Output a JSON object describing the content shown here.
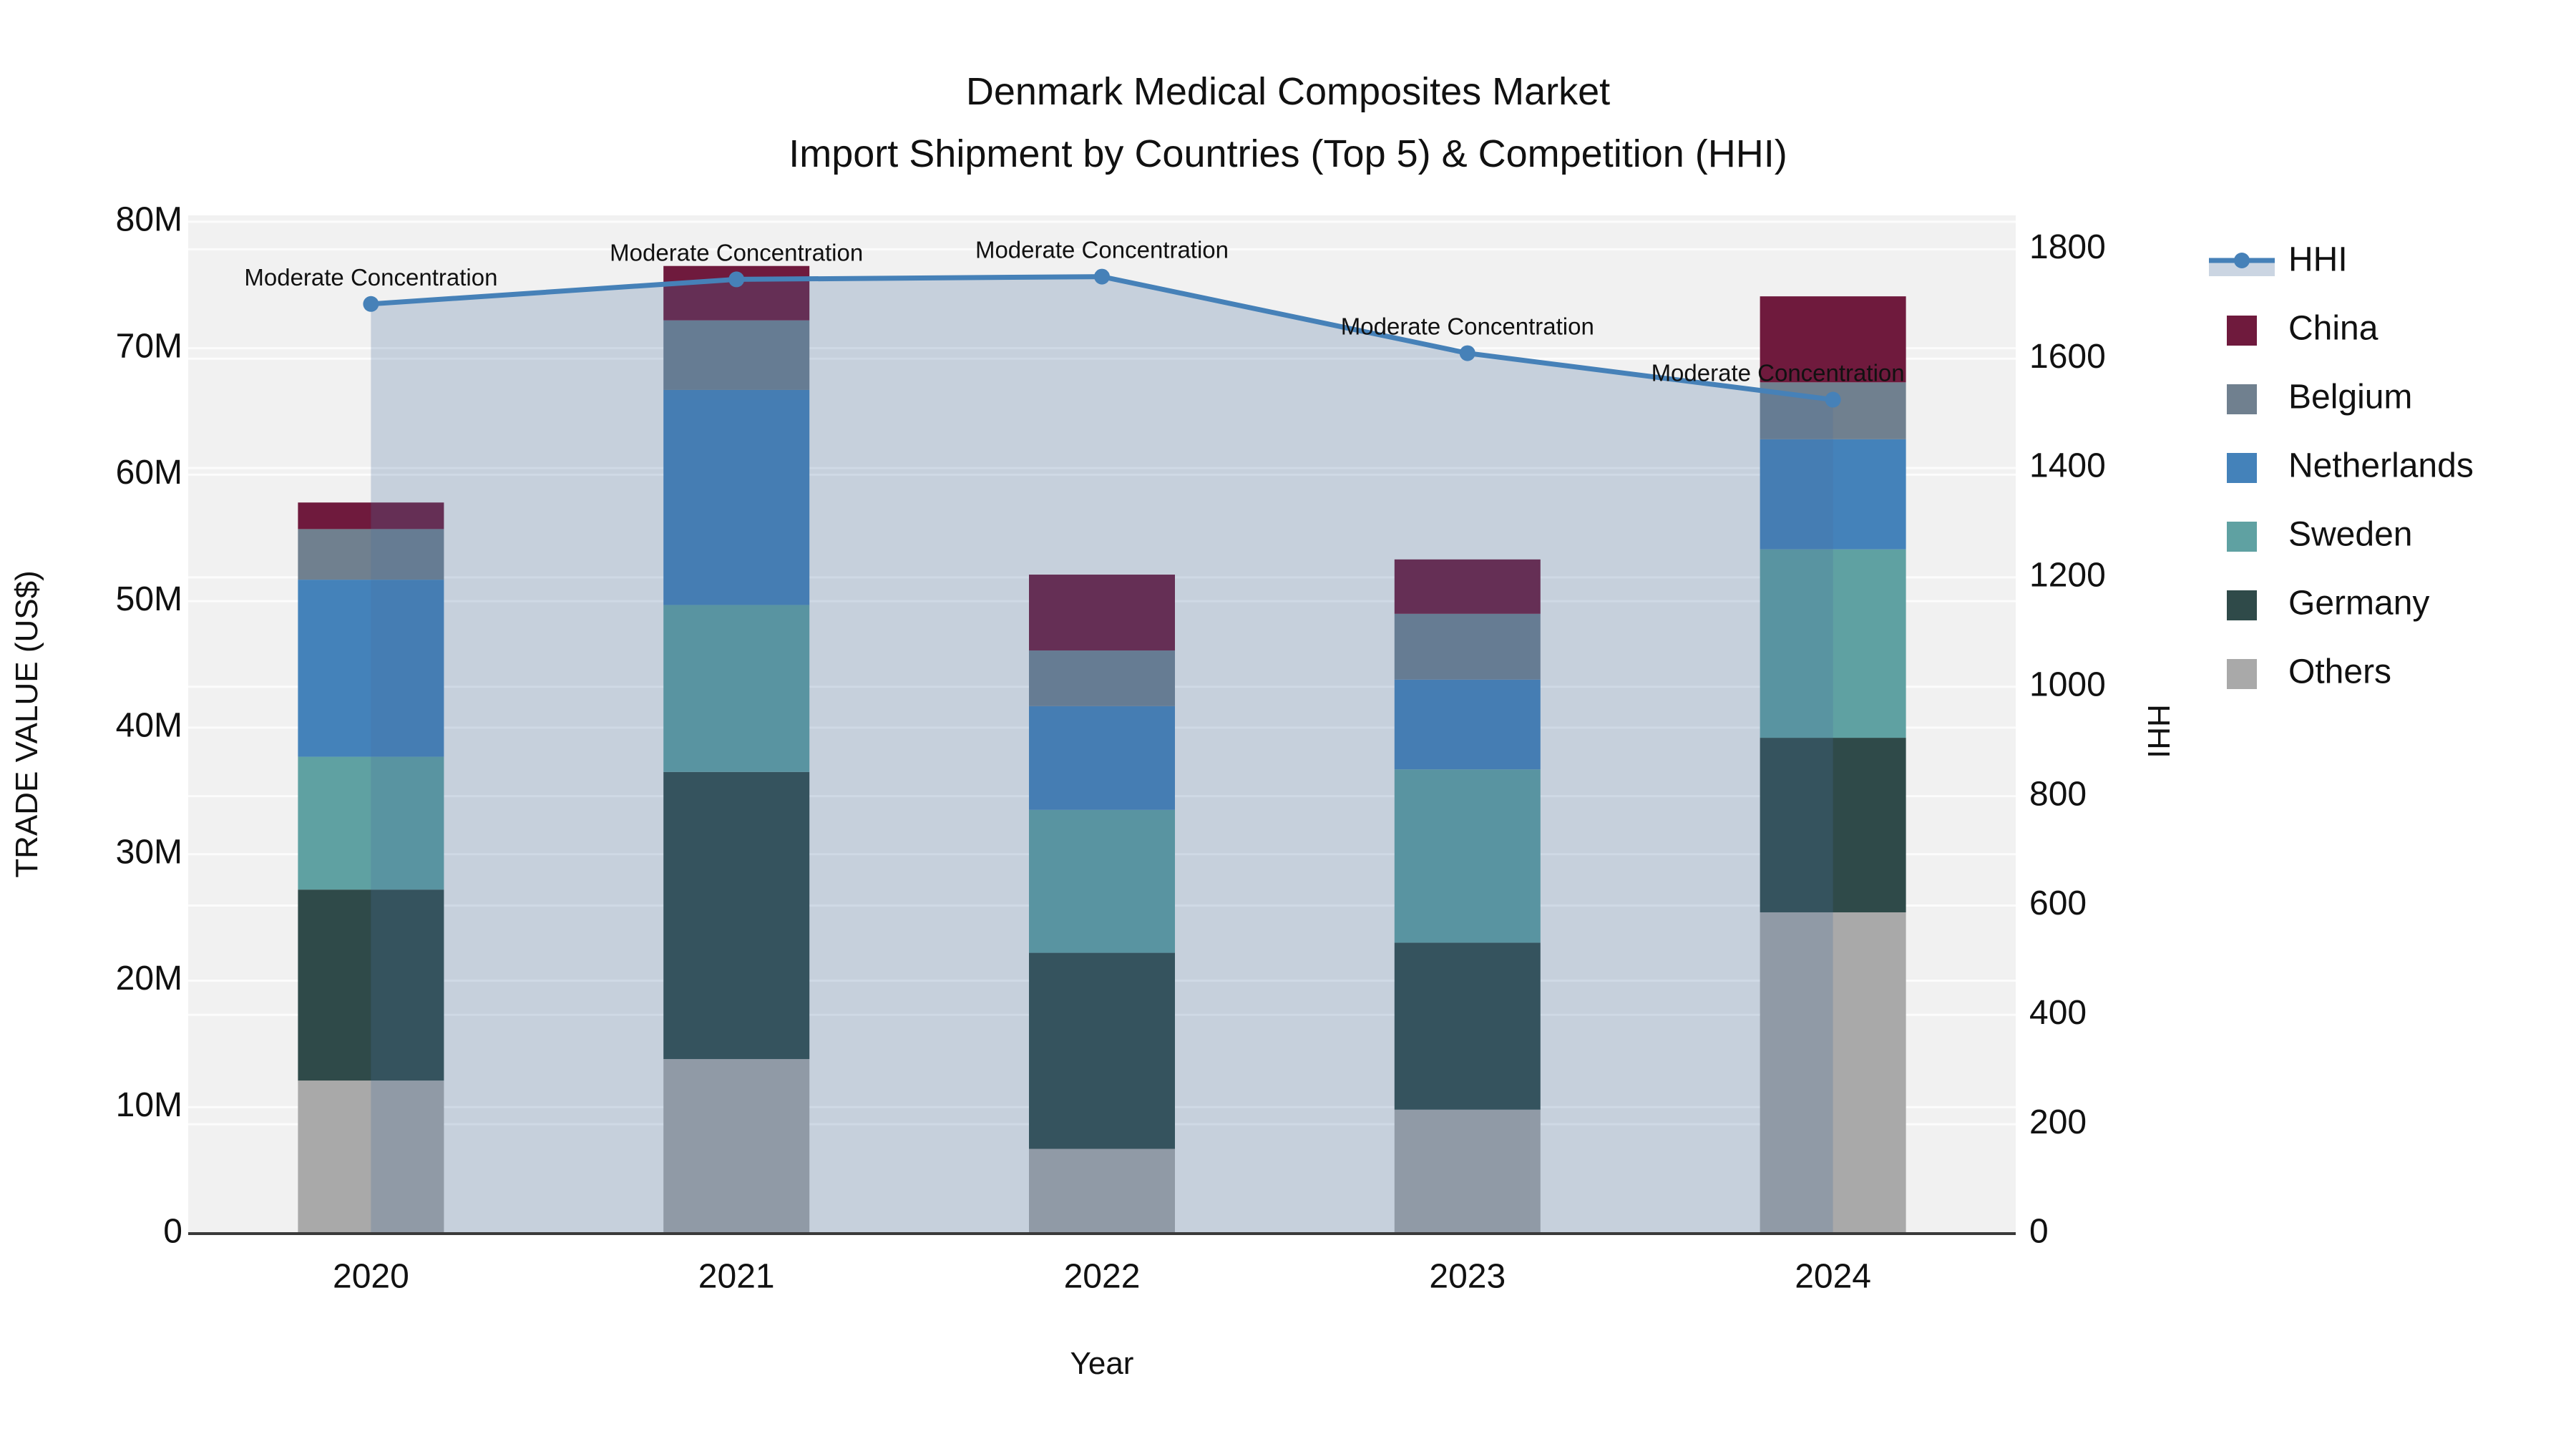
{
  "title": {
    "line1": "Denmark Medical Composites Market",
    "line2": "Import Shipment by Countries (Top 5) & Competition (HHI)"
  },
  "axes": {
    "left": {
      "title": "TRADE VALUE (US$)",
      "tick_labels": [
        "0",
        "10M",
        "20M",
        "30M",
        "40M",
        "50M",
        "60M",
        "70M",
        "80M"
      ],
      "tick_values_musd": [
        0,
        10,
        20,
        30,
        40,
        50,
        60,
        70,
        80
      ],
      "range_musd": [
        0,
        80.5
      ]
    },
    "right": {
      "title": "HHI",
      "tick_labels": [
        "0",
        "200",
        "400",
        "600",
        "800",
        "1000",
        "1200",
        "1400",
        "1600",
        "1800"
      ],
      "tick_values": [
        0,
        200,
        400,
        600,
        800,
        1000,
        1200,
        1400,
        1600,
        1800
      ],
      "range": [
        0,
        1862
      ]
    },
    "x": {
      "title": "Year",
      "tick_labels": [
        "2020",
        "2021",
        "2022",
        "2023",
        "2024"
      ]
    }
  },
  "legend": {
    "items": [
      {
        "label": "HHI",
        "type": "line",
        "color": "#4681B8"
      },
      {
        "label": "China",
        "type": "swatch",
        "color": "#6F1A3D"
      },
      {
        "label": "Belgium",
        "type": "swatch",
        "color": "#70808F"
      },
      {
        "label": "Netherlands",
        "type": "swatch",
        "color": "#4482BA"
      },
      {
        "label": "Sweden",
        "type": "swatch",
        "color": "#5FA1A2"
      },
      {
        "label": "Germany",
        "type": "swatch",
        "color": "#2F4A49"
      },
      {
        "label": "Others",
        "type": "swatch",
        "color": "#A9A9A9"
      }
    ]
  },
  "annotations": {
    "label": "Moderate Concentration"
  },
  "chart_data": {
    "type": "bar",
    "subtype": "stacked-bars-with-line",
    "title": "Denmark Medical Composites Market — Import Shipment by Countries (Top 5) & Competition (HHI)",
    "xlabel": "Year",
    "ylabel_left": "TRADE VALUE (US$)",
    "ylabel_right": "HHI",
    "categories": [
      "2020",
      "2021",
      "2022",
      "2023",
      "2024"
    ],
    "stack_order_bottom_to_top": [
      "Others",
      "Germany",
      "Sweden",
      "Netherlands",
      "Belgium",
      "China"
    ],
    "series": [
      {
        "name": "China",
        "axis": "left",
        "unit": "M US$",
        "values": [
          2.1,
          4.3,
          6.0,
          4.3,
          6.8
        ],
        "color": "#6F1A3D"
      },
      {
        "name": "Belgium",
        "axis": "left",
        "unit": "M US$",
        "values": [
          4.0,
          5.5,
          4.4,
          5.2,
          4.5
        ],
        "color": "#70808F"
      },
      {
        "name": "Netherlands",
        "axis": "left",
        "unit": "M US$",
        "values": [
          14.0,
          17.0,
          8.2,
          7.1,
          8.7
        ],
        "color": "#4482BA"
      },
      {
        "name": "Sweden",
        "axis": "left",
        "unit": "M US$",
        "values": [
          10.5,
          13.2,
          11.3,
          13.7,
          14.9
        ],
        "color": "#5FA1A2"
      },
      {
        "name": "Germany",
        "axis": "left",
        "unit": "M US$",
        "values": [
          15.1,
          22.7,
          15.5,
          13.2,
          13.8
        ],
        "color": "#2F4A49"
      },
      {
        "name": "Others",
        "axis": "left",
        "unit": "M US$",
        "values": [
          12.1,
          13.8,
          6.7,
          9.8,
          25.4
        ],
        "color": "#A9A9A9"
      }
    ],
    "bar_totals_musd": [
      57.8,
      76.5,
      52.1,
      53.3,
      74.1
    ],
    "line_series": {
      "name": "HHI",
      "axis": "right",
      "values": [
        1700,
        1745,
        1750,
        1610,
        1525
      ],
      "color": "#4681B8",
      "fill_to_zero": true,
      "fill_color": "rgba(70,110,160,0.25)",
      "point_annotations": [
        "Moderate Concentration",
        "Moderate Concentration",
        "Moderate Concentration",
        "Moderate Concentration",
        "Moderate Concentration"
      ]
    },
    "ylim_left_musd": [
      0,
      80.5
    ],
    "ylim_right": [
      0,
      1862
    ],
    "grid": true,
    "legend_position": "right",
    "plot_bg": "#F1F1F1",
    "grid_color": "rgba(255,255,255,0.75)",
    "axisline_color": "#3A3A3A"
  }
}
